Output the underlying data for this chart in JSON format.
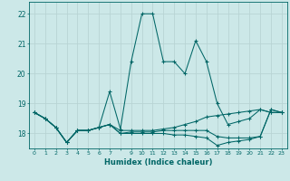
{
  "xlabel": "Humidex (Indice chaleur)",
  "bg_color": "#cce8e8",
  "grid_color": "#b8d4d4",
  "line_color": "#006666",
  "xlim": [
    -0.5,
    23.5
  ],
  "ylim": [
    17.5,
    22.4
  ],
  "yticks": [
    18,
    19,
    20,
    21,
    22
  ],
  "xtick_labels": [
    "0",
    "1",
    "2",
    "3",
    "4",
    "5",
    "6",
    "7",
    "",
    "9",
    "10",
    "11",
    "12",
    "13",
    "14",
    "15",
    "16",
    "17",
    "18",
    "19",
    "20",
    "21",
    "22",
    "23"
  ],
  "series": [
    [
      18.7,
      18.5,
      18.2,
      17.7,
      18.1,
      18.1,
      18.2,
      19.4,
      18.15,
      20.4,
      22.0,
      22.0,
      20.4,
      20.4,
      20.0,
      21.1,
      20.4,
      19.0,
      18.3,
      18.4,
      18.5,
      18.8,
      18.7,
      18.7
    ],
    [
      18.7,
      18.5,
      18.2,
      17.7,
      18.1,
      18.1,
      18.2,
      18.3,
      18.1,
      18.1,
      18.1,
      18.1,
      18.15,
      18.2,
      18.3,
      18.4,
      18.55,
      18.6,
      18.65,
      18.7,
      18.75,
      18.8,
      18.7,
      18.7
    ],
    [
      18.7,
      18.5,
      18.2,
      17.7,
      18.1,
      18.1,
      18.2,
      18.3,
      18.0,
      18.05,
      18.05,
      18.05,
      18.1,
      18.1,
      18.1,
      18.1,
      18.1,
      17.9,
      17.85,
      17.85,
      17.85,
      17.9,
      18.8,
      18.7
    ],
    [
      18.7,
      18.5,
      18.2,
      17.7,
      18.1,
      18.1,
      18.2,
      18.3,
      18.0,
      18.0,
      18.0,
      18.0,
      18.0,
      17.95,
      17.95,
      17.9,
      17.85,
      17.6,
      17.7,
      17.75,
      17.8,
      17.9,
      18.8,
      18.7
    ]
  ]
}
